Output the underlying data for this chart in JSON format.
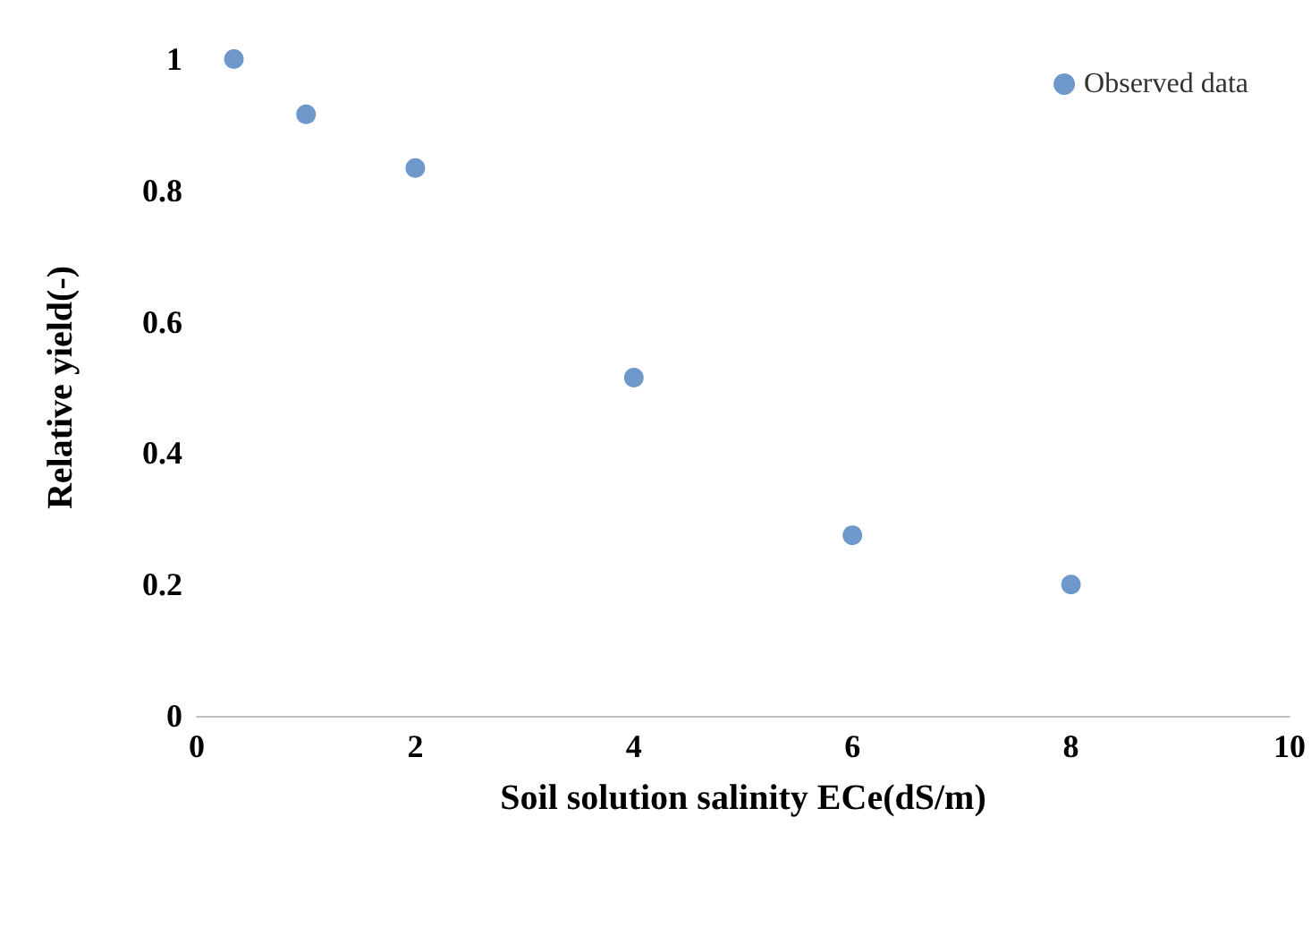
{
  "chart_data": {
    "type": "scatter",
    "xlabel": "Soil solution salinity ECe(dS/m)",
    "ylabel": "Relative yield(-)",
    "series": [
      {
        "name": "Observed data",
        "color": "#4a7ebb",
        "x": [
          0.34,
          1,
          2,
          4,
          6,
          8
        ],
        "values": [
          1.0,
          0.916,
          0.834,
          0.515,
          0.275,
          0.2
        ]
      }
    ],
    "xlim": [
      0,
      10
    ],
    "xticks": [
      0,
      2,
      4,
      6,
      8,
      10
    ],
    "ylim": [
      0,
      1
    ],
    "yticks": [
      0,
      0.2,
      0.4,
      0.6,
      0.8,
      1
    ],
    "grid": false,
    "legend": "top right",
    "marker": "circle"
  }
}
